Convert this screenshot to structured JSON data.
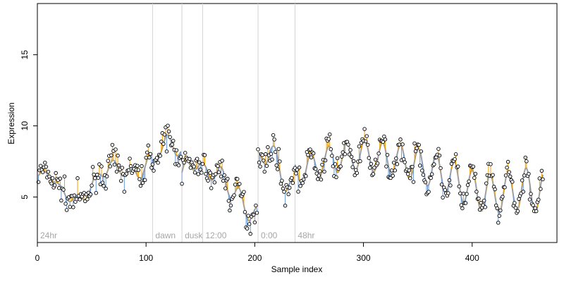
{
  "chart_data": {
    "type": "scatter",
    "title": "",
    "xlabel": "Sample index",
    "ylabel": "Expression",
    "xlim": [
      0,
      478
    ],
    "ylim": [
      1.8,
      18.6
    ],
    "x_ticks": [
      0,
      100,
      200,
      300,
      400
    ],
    "y_ticks": [
      5,
      10,
      15
    ],
    "grid": false,
    "colors": {
      "fitted_line": "#9e9e9e",
      "residual_up": "#f0a000",
      "residual_down": "#6a9bd8",
      "point_fill": "#ffffff",
      "point_edge": "#000000",
      "marker_line": "#d3d3d3",
      "marker_text": "#a6a6a6"
    },
    "markers": [
      {
        "x": 0,
        "label": "24hr"
      },
      {
        "x": 106,
        "label": "dawn"
      },
      {
        "x": 133,
        "label": "dusk"
      },
      {
        "x": 152,
        "label": "12:00"
      },
      {
        "x": 203,
        "label": "0:00"
      },
      {
        "x": 237,
        "label": "48hr"
      }
    ],
    "segments": [
      {
        "start": 1,
        "end": 105,
        "base": [
          6.4,
          6.8,
          5.6,
          5.0,
          4.6,
          5.6,
          6.6,
          7.2,
          7.0,
          6.6,
          6.8,
          7.6
        ]
      },
      {
        "start": 106,
        "end": 132,
        "base": [
          7.4,
          8.4,
          8.8,
          8.7,
          8.2
        ]
      },
      {
        "start": 133,
        "end": 151,
        "base": [
          6.5,
          7.2,
          7.6,
          6.9
        ]
      },
      {
        "start": 152,
        "end": 202,
        "base": [
          6.6,
          6.9,
          6.2,
          5.2,
          4.3,
          3.4
        ]
      },
      {
        "start": 203,
        "end": 236,
        "base": [
          7.4,
          8.0,
          8.4,
          7.5,
          6.6,
          5.8,
          5.2
        ]
      },
      {
        "start": 237,
        "end": 465,
        "base": [
          6.6,
          7.2,
          7.6,
          7.8,
          8.0,
          7.8,
          7.6,
          7.4,
          7.0,
          6.6,
          6.0,
          5.4,
          5.2,
          5.4,
          5.6,
          5.2
        ]
      }
    ],
    "wave": {
      "period": 16.5,
      "amp_start": 0.25,
      "amp_end": 1.5
    },
    "noise_sd": 0.75,
    "seed": 7
  }
}
